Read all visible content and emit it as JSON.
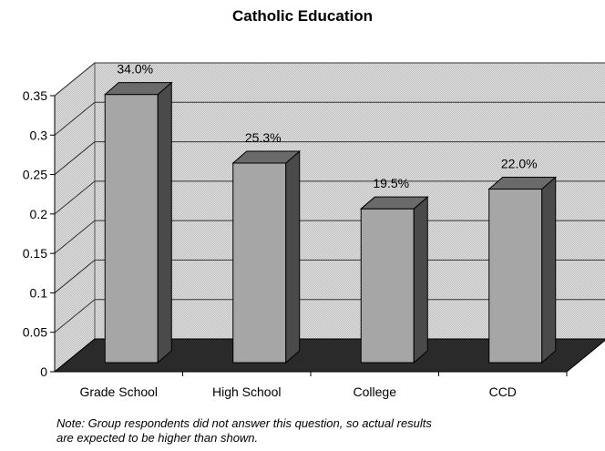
{
  "chart_data": {
    "type": "bar",
    "title": "Catholic Education",
    "categories": [
      "Grade School",
      "High School",
      "College",
      "CCD"
    ],
    "values": [
      0.34,
      0.253,
      0.195,
      0.22
    ],
    "data_labels": [
      "34.0%",
      "25.3%",
      "19.5%",
      "22.0%"
    ],
    "yticks": [
      "0",
      "0.05",
      "0.1",
      "0.15",
      "0.2",
      "0.25",
      "0.3",
      "0.35"
    ],
    "ylim": [
      0,
      0.35
    ],
    "grid": true,
    "style": "3d"
  },
  "note": {
    "line1": "Note:  Group respondents did not answer this question, so actual results",
    "line2": "are expected to be higher than  shown."
  },
  "colors": {
    "bar_front": "#a6a6a6",
    "bar_side": "#4a4a4a",
    "bar_top": "#6a6a6a",
    "back_wall": "#d6d6d6",
    "floor": "#2a2a2a"
  }
}
